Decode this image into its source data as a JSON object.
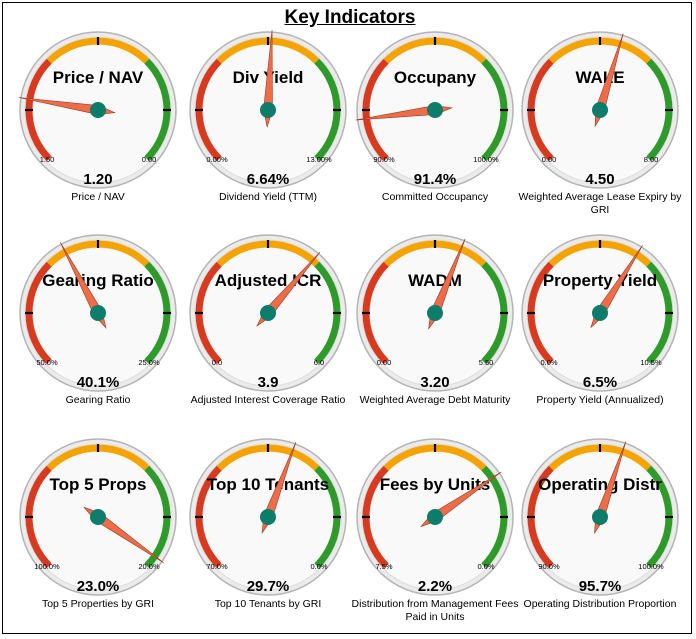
{
  "title": "Key Indicators",
  "colors": {
    "red": "#d73a1e",
    "orange": "#f5a300",
    "green": "#2e9a2a",
    "needle": "#ed6d4a",
    "hub": "#0e7c6b"
  },
  "chart_data": [
    {
      "type": "gauge",
      "title": "Price / NAV",
      "value_label": "1.20",
      "min_label": "1.50",
      "max_label": "0.00",
      "caption": "Price / NAV",
      "value": 1.2,
      "range": [
        1.5,
        0.0
      ]
    },
    {
      "type": "gauge",
      "title": "Div Yield",
      "value_label": "6.64%",
      "min_label": "0.00%",
      "max_label": "13.00%",
      "caption": "Dividend Yield (TTM)",
      "value": 6.64,
      "range": [
        0.0,
        13.0
      ]
    },
    {
      "type": "gauge",
      "title": "Occupany",
      "value_label": "91.4%",
      "min_label": "90.0%",
      "max_label": "100.0%",
      "caption": "Committed Occupancy",
      "value": 91.4,
      "range": [
        90.0,
        100.0
      ]
    },
    {
      "type": "gauge",
      "title": "WALE",
      "value_label": "4.50",
      "min_label": "0.00",
      "max_label": "8.00",
      "caption": "Weighted Average Lease Expiry by GRI",
      "value": 4.5,
      "range": [
        0.0,
        8.0
      ]
    },
    {
      "type": "gauge",
      "title": "Gearing Ratio",
      "value_label": "40.1%",
      "min_label": "50.0%",
      "max_label": "25.0%",
      "caption": "Gearing Ratio",
      "value": 40.1,
      "range": [
        50.0,
        25.0
      ]
    },
    {
      "type": "gauge",
      "title": "Adjusted ICR",
      "value_label": "3.9",
      "min_label": "0.0",
      "max_label": "6.0",
      "caption": "Adjusted Interest Coverage Ratio",
      "value": 3.9,
      "range": [
        0.0,
        6.0
      ]
    },
    {
      "type": "gauge",
      "title": "WADM",
      "value_label": "3.20",
      "min_label": "0.00",
      "max_label": "5.50",
      "caption": "Weighted Average Debt Maturity",
      "value": 3.2,
      "range": [
        0.0,
        5.5
      ]
    },
    {
      "type": "gauge",
      "title": "Property Yield",
      "value_label": "6.5%",
      "min_label": "0.0%",
      "max_label": "10.5%",
      "caption": "Property Yield (Annualized)",
      "value": 6.5,
      "range": [
        0.0,
        10.5
      ]
    },
    {
      "type": "gauge",
      "title": "Top 5 Props",
      "value_label": "23.0%",
      "min_label": "100.0%",
      "max_label": "20.0%",
      "caption": "Top 5 Properties by GRI",
      "value": 23.0,
      "range": [
        100.0,
        20.0
      ]
    },
    {
      "type": "gauge",
      "title": "Top 10 Tenants",
      "value_label": "29.7%",
      "min_label": "70.0%",
      "max_label": "0.0%",
      "caption": "Top 10 Tenants by GRI",
      "value": 29.7,
      "range": [
        70.0,
        0.0
      ]
    },
    {
      "type": "gauge",
      "title": "Fees by Units",
      "value_label": "2.2%",
      "min_label": "7.5%",
      "max_label": "0.0%",
      "caption": "Distribution from Management Fees Paid in Units",
      "value": 2.2,
      "range": [
        7.5,
        0.0
      ]
    },
    {
      "type": "gauge",
      "title": "Operating Distr",
      "value_label": "95.7%",
      "min_label": "90.0%",
      "max_label": "100.0%",
      "caption": "Operating Distribution Proportion",
      "value": 95.7,
      "range": [
        90.0,
        100.0
      ]
    }
  ]
}
